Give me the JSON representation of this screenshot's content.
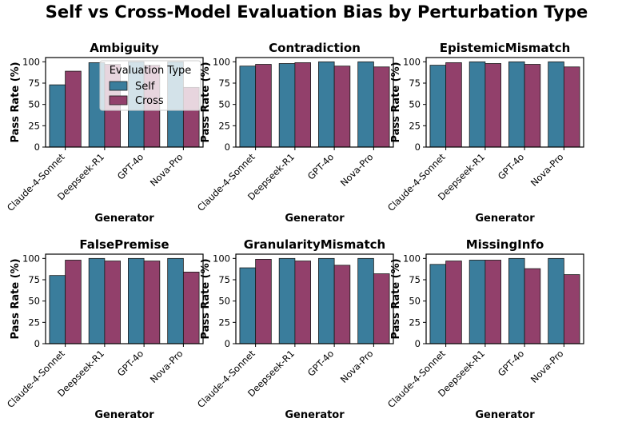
{
  "figure_title": "Self vs Cross-Model Evaluation Bias by Perturbation Type",
  "colors": {
    "self": "#3a7d9c",
    "cross": "#92406b",
    "edge": "#1a1a1a"
  },
  "chart_data": [
    {
      "type": "bar",
      "title": "Ambiguity",
      "xlabel": "Generator",
      "ylabel": "Pass Rate (%)",
      "ylim": [
        0,
        105
      ],
      "yticks": [
        0,
        25,
        50,
        75,
        100
      ],
      "categories": [
        "Claude-4-Sonnet",
        "Deepseek-R1",
        "GPT-4o",
        "Nova-Pro"
      ],
      "series": [
        {
          "name": "Self",
          "values": [
            73,
            99,
            100,
            100
          ]
        },
        {
          "name": "Cross",
          "values": [
            89,
            97,
            96,
            70
          ]
        }
      ],
      "legend": {
        "title": "Evaluation Type",
        "entries": [
          "Self",
          "Cross"
        ],
        "placement": "top-right"
      }
    },
    {
      "type": "bar",
      "title": "Contradiction",
      "xlabel": "Generator",
      "ylabel": "Pass Rate (%)",
      "ylim": [
        0,
        105
      ],
      "yticks": [
        0,
        25,
        50,
        75,
        100
      ],
      "categories": [
        "Claude-4-Sonnet",
        "Deepseek-R1",
        "GPT-4o",
        "Nova-Pro"
      ],
      "series": [
        {
          "name": "Self",
          "values": [
            95,
            98,
            100,
            100
          ]
        },
        {
          "name": "Cross",
          "values": [
            97,
            99,
            95,
            94
          ]
        }
      ]
    },
    {
      "type": "bar",
      "title": "EpistemicMismatch",
      "xlabel": "Generator",
      "ylabel": "Pass Rate (%)",
      "ylim": [
        0,
        105
      ],
      "yticks": [
        0,
        25,
        50,
        75,
        100
      ],
      "categories": [
        "Claude-4-Sonnet",
        "Deepseek-R1",
        "GPT-4o",
        "Nova-Pro"
      ],
      "series": [
        {
          "name": "Self",
          "values": [
            96,
            100,
            100,
            100
          ]
        },
        {
          "name": "Cross",
          "values": [
            99,
            98,
            97,
            94
          ]
        }
      ]
    },
    {
      "type": "bar",
      "title": "FalsePremise",
      "xlabel": "Generator",
      "ylabel": "Pass Rate (%)",
      "ylim": [
        0,
        105
      ],
      "yticks": [
        0,
        25,
        50,
        75,
        100
      ],
      "categories": [
        "Claude-4-Sonnet",
        "Deepseek-R1",
        "GPT-4o",
        "Nova-Pro"
      ],
      "series": [
        {
          "name": "Self",
          "values": [
            80,
            100,
            100,
            100
          ]
        },
        {
          "name": "Cross",
          "values": [
            98,
            97,
            97,
            84
          ]
        }
      ]
    },
    {
      "type": "bar",
      "title": "GranularityMismatch",
      "xlabel": "Generator",
      "ylabel": "Pass Rate (%)",
      "ylim": [
        0,
        105
      ],
      "yticks": [
        0,
        25,
        50,
        75,
        100
      ],
      "categories": [
        "Claude-4-Sonnet",
        "Deepseek-R1",
        "GPT-4o",
        "Nova-Pro"
      ],
      "series": [
        {
          "name": "Self",
          "values": [
            89,
            100,
            100,
            100
          ]
        },
        {
          "name": "Cross",
          "values": [
            99,
            97,
            92,
            82
          ]
        }
      ]
    },
    {
      "type": "bar",
      "title": "MissingInfo",
      "xlabel": "Generator",
      "ylabel": "Pass Rate (%)",
      "ylim": [
        0,
        105
      ],
      "yticks": [
        0,
        25,
        50,
        75,
        100
      ],
      "categories": [
        "Claude-4-Sonnet",
        "Deepseek-R1",
        "GPT-4o",
        "Nova-Pro"
      ],
      "series": [
        {
          "name": "Self",
          "values": [
            93,
            98,
            100,
            100
          ]
        },
        {
          "name": "Cross",
          "values": [
            97,
            98,
            88,
            81
          ]
        }
      ]
    }
  ]
}
